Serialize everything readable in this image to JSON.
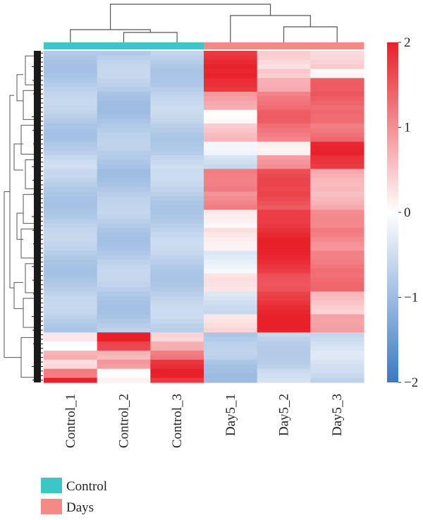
{
  "chart_data": {
    "type": "heatmap",
    "columns": [
      "Control_1",
      "Control_2",
      "Control_3",
      "Day5_1",
      "Day5_2",
      "Day5_3"
    ],
    "column_groups": [
      "Control",
      "Control",
      "Control",
      "Days",
      "Days",
      "Days"
    ],
    "colorbar": {
      "min": -2,
      "max": 2,
      "ticks": [
        "2",
        "1",
        "0",
        "−1",
        "−2"
      ],
      "tick_values": [
        2,
        1,
        0,
        -1,
        -2
      ]
    },
    "colors": {
      "low": "#3b78c4",
      "mid": "#ffffff",
      "high": "#e8202a",
      "control": "#3cc6c8",
      "days": "#f48a86",
      "dendro": "#555555"
    },
    "legend": [
      {
        "label": "Control",
        "color": "#3cc6c8"
      },
      {
        "label": "Days",
        "color": "#f48a86"
      }
    ],
    "row_blocks": [
      {
        "rows": 4,
        "values": [
          -0.75,
          -0.75,
          -0.7,
          1.9,
          0.3,
          0.5
        ]
      },
      {
        "rows": 2,
        "values": [
          -0.75,
          -0.75,
          -0.7,
          1.8,
          0.6,
          0.0
        ]
      },
      {
        "rows": 3,
        "values": [
          -0.75,
          -0.75,
          -0.7,
          1.7,
          0.9,
          1.3
        ]
      },
      {
        "rows": 4,
        "values": [
          -0.75,
          -0.8,
          -0.7,
          0.9,
          1.2,
          1.4
        ]
      },
      {
        "rows": 3,
        "values": [
          -0.75,
          -0.85,
          -0.7,
          0.2,
          1.3,
          1.5
        ]
      },
      {
        "rows": 4,
        "values": [
          -0.75,
          -0.85,
          -0.7,
          0.5,
          1.2,
          1.3
        ]
      },
      {
        "rows": 3,
        "values": [
          -0.7,
          -0.8,
          -0.65,
          -0.3,
          0.3,
          1.8
        ]
      },
      {
        "rows": 3,
        "values": [
          -0.65,
          -0.75,
          -0.6,
          -0.5,
          1.0,
          1.7
        ]
      },
      {
        "rows": 5,
        "values": [
          -0.75,
          -0.8,
          -0.7,
          1.3,
          1.5,
          0.8
        ]
      },
      {
        "rows": 4,
        "values": [
          -0.75,
          -0.8,
          -0.7,
          1.0,
          1.6,
          0.7
        ]
      },
      {
        "rows": 4,
        "values": [
          -0.75,
          -0.75,
          -0.7,
          0.0,
          1.9,
          0.9
        ]
      },
      {
        "rows": 5,
        "values": [
          -0.75,
          -0.75,
          -0.7,
          0.3,
          1.9,
          1.1
        ]
      },
      {
        "rows": 5,
        "values": [
          -0.75,
          -0.75,
          -0.7,
          -0.2,
          1.8,
          1.3
        ]
      },
      {
        "rows": 4,
        "values": [
          -0.75,
          -0.75,
          -0.7,
          0.1,
          1.7,
          1.2
        ]
      },
      {
        "rows": 5,
        "values": [
          -0.75,
          -0.75,
          -0.7,
          -0.4,
          1.8,
          0.5
        ]
      },
      {
        "rows": 4,
        "values": [
          -0.75,
          -0.75,
          -0.7,
          0.4,
          1.9,
          1.0
        ]
      },
      {
        "rows": 2,
        "values": [
          0.4,
          1.9,
          0.5,
          -0.9,
          -0.6,
          -0.55
        ]
      },
      {
        "rows": 2,
        "values": [
          0.1,
          1.5,
          0.9,
          -0.85,
          -0.6,
          -0.55
        ]
      },
      {
        "rows": 2,
        "values": [
          0.7,
          0.6,
          1.3,
          -0.8,
          -0.6,
          -0.5
        ]
      },
      {
        "rows": 2,
        "values": [
          0.2,
          1.0,
          1.8,
          -0.9,
          -0.65,
          -0.55
        ]
      },
      {
        "rows": 2,
        "values": [
          1.0,
          0.2,
          1.9,
          -0.85,
          -0.6,
          -0.5
        ]
      },
      {
        "rows": 1,
        "values": [
          1.9,
          0.3,
          1.6,
          -0.8,
          -0.6,
          -0.55
        ]
      }
    ]
  }
}
